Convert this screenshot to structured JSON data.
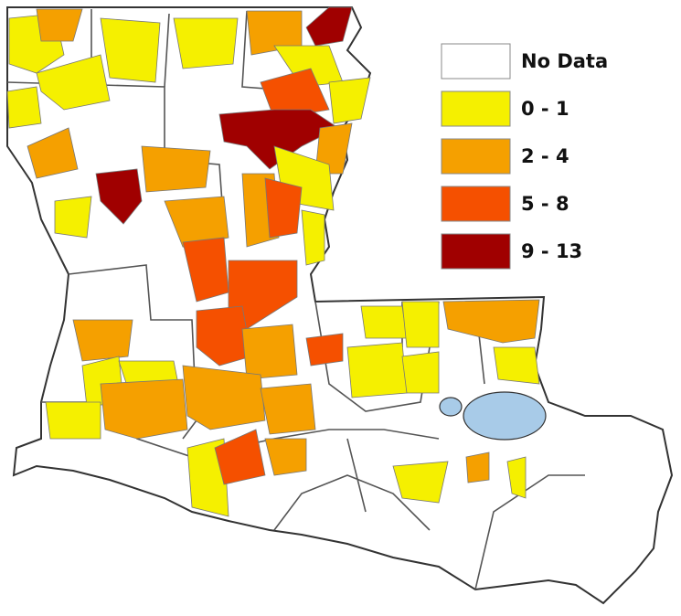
{
  "legend": {
    "items": [
      {
        "label": "No Data",
        "color": "#ffffff"
      },
      {
        "label": "0 - 1",
        "color": "#f5f000"
      },
      {
        "label": "2 - 4",
        "color": "#f5a000"
      },
      {
        "label": "5 - 8",
        "color": "#f55000"
      },
      {
        "label": "9 - 13",
        "color": "#a00000"
      }
    ]
  }
}
